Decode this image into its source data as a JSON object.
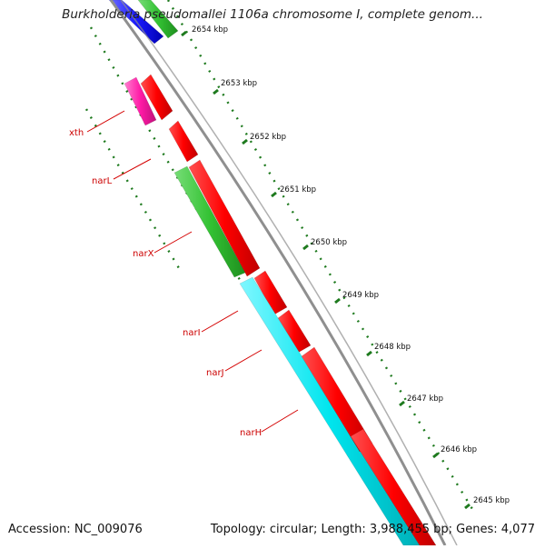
{
  "title": "Burkholderia pseudomallei 1106a chromosome I, complete genom...",
  "footer": {
    "accession": "Accession: NC_009076",
    "summary": "Topology: circular; Length: 3,988,455 bp; Genes: 4,077"
  },
  "colors": {
    "backbone": "#8f8f8f",
    "ticks": "#1e7a1e",
    "label_text": "#cc0000",
    "leader_line": "#d40000",
    "red_gene": "#ff0000",
    "cyan_gene": "#00e5ee",
    "green_gene": "#33c233",
    "magenta_gene": "#ff1aa6",
    "blue_gene": "#1a1aff"
  },
  "ruler": {
    "ticks": [
      {
        "label": "2654 kbp"
      },
      {
        "label": "2653 kbp"
      },
      {
        "label": "2652 kbp"
      },
      {
        "label": "2651 kbp"
      },
      {
        "label": "2650 kbp"
      },
      {
        "label": "2649 kbp"
      },
      {
        "label": "2648 kbp"
      },
      {
        "label": "2647 kbp"
      },
      {
        "label": "2646 kbp"
      },
      {
        "label": "2645 kbp"
      }
    ]
  },
  "gene_labels": [
    {
      "name": "xth"
    },
    {
      "name": "narL"
    },
    {
      "name": "narX"
    },
    {
      "name": "narI"
    },
    {
      "name": "narJ"
    },
    {
      "name": "narH"
    }
  ]
}
